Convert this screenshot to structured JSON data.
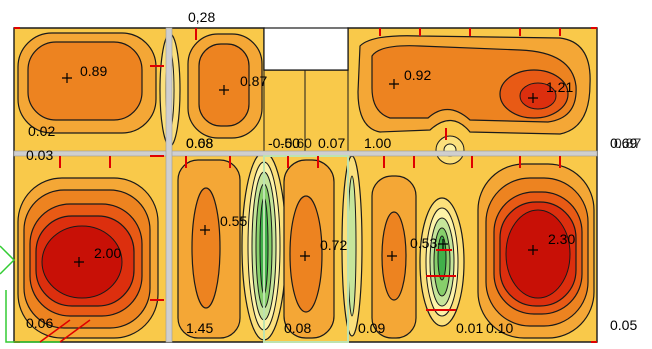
{
  "title": "Slab contour plot",
  "colors": {
    "background": "#ffffff",
    "level_low": "#fdf3a8",
    "level_1": "#fbe07c",
    "level_2": "#f9c94a",
    "level_3": "#f4a736",
    "level_4": "#ed8320",
    "level_5": "#e85a15",
    "level_6": "#dc2f0e",
    "level_max": "#c81006",
    "green_1": "#c6e59a",
    "green_2": "#87cf6b",
    "green_3": "#41b04a",
    "contour": "#1a1a1a",
    "beam": "#cfcfcf",
    "support": "#e00000",
    "axis_marker": "#000000"
  },
  "labels": {
    "top_mid": "0,28",
    "p1": "0.89",
    "p2": "0.87",
    "p3": "0.92",
    "p4": "1.21",
    "edge_left_upper": "0.02",
    "edge_left_mid": "0.03",
    "mid_a": "0.08",
    "mid_b": "0.68",
    "mid_c": "-0.50",
    "mid_d": "-0.60",
    "mid_e": "0.07",
    "mid_f": "1.00",
    "right_edge_upper": "0.69",
    "right_edge_upper_b": "0.87",
    "p5": "2.00",
    "p6": "0.55",
    "p7": "0.72",
    "p8": "0.53",
    "p9": "2.30",
    "bottom_a": "0.06",
    "bottom_b": "1.45",
    "bottom_c": "0.08",
    "bottom_d": "0.09",
    "bottom_e": "0.01",
    "bottom_f": "0.10",
    "right_edge_lower": "0.05"
  }
}
